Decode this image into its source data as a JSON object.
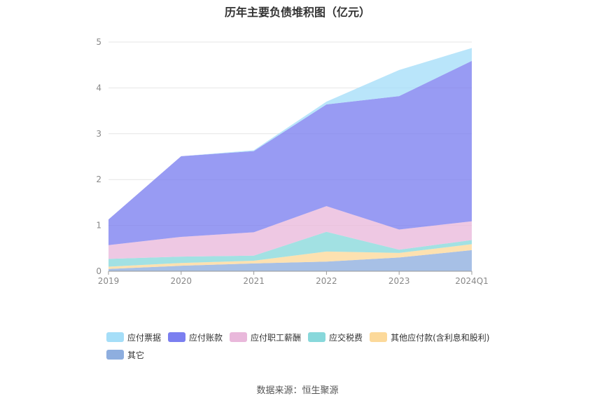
{
  "title": "历年主要负债堆积图（亿元）",
  "source": "数据来源：恒生聚源",
  "chart_data": {
    "type": "area",
    "stacked": true,
    "title": "历年主要负债堆积图（亿元）",
    "categories": [
      "2019",
      "2020",
      "2021",
      "2022",
      "2023",
      "2024Q1"
    ],
    "ylim": [
      0,
      5
    ],
    "yticks": [
      "0",
      "1",
      "2",
      "3",
      "4",
      "5"
    ],
    "grid": true,
    "legend_position": "bottom",
    "series": [
      {
        "name": "其它",
        "color": "#8eaedf",
        "values": [
          0.05,
          0.12,
          0.17,
          0.21,
          0.3,
          0.46
        ]
      },
      {
        "name": "其他应付款(含利息和股利)",
        "color": "#fcd99a",
        "values": [
          0.05,
          0.06,
          0.06,
          0.22,
          0.1,
          0.13
        ]
      },
      {
        "name": "应交税费",
        "color": "#88d8db",
        "values": [
          0.17,
          0.14,
          0.11,
          0.43,
          0.07,
          0.09
        ]
      },
      {
        "name": "应付职工薪酬",
        "color": "#e9b8db",
        "values": [
          0.3,
          0.43,
          0.51,
          0.56,
          0.44,
          0.41
        ]
      },
      {
        "name": "应付账款",
        "color": "#7b7ff0",
        "values": [
          0.56,
          1.76,
          1.77,
          2.22,
          2.91,
          3.5
        ]
      },
      {
        "name": "应付票据",
        "color": "#a5def8",
        "values": [
          0.0,
          0.0,
          0.02,
          0.06,
          0.57,
          0.28
        ]
      }
    ]
  },
  "legend": [
    {
      "name": "应付票据",
      "color": "#a5def8"
    },
    {
      "name": "应付账款",
      "color": "#7b7ff0"
    },
    {
      "name": "应付职工薪酬",
      "color": "#e9b8db"
    },
    {
      "name": "应交税费",
      "color": "#88d8db"
    },
    {
      "name": "其他应付款(含利息和股利)",
      "color": "#fcd99a"
    },
    {
      "name": "其它",
      "color": "#8eaedf"
    }
  ]
}
